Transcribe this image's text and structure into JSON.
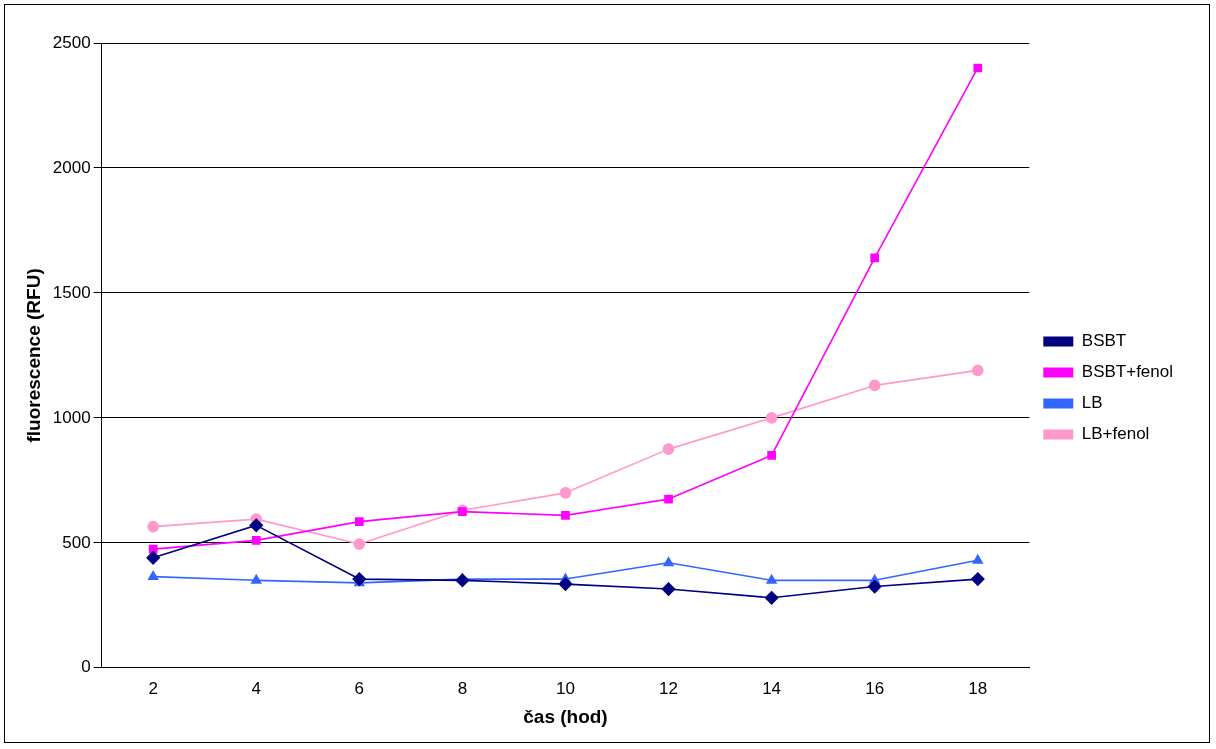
{
  "chart_data": {
    "type": "line",
    "xlabel": "čas (hod)",
    "ylabel": "fluorescence (RFU)",
    "categories": [
      "2",
      "4",
      "6",
      "8",
      "10",
      "12",
      "14",
      "16",
      "18"
    ],
    "ylim": [
      0,
      2500
    ],
    "yticks": [
      0,
      500,
      1000,
      1500,
      2000,
      2500
    ],
    "grid": "y",
    "legend": "right",
    "line_style": "solid",
    "series": [
      {
        "name": "BSBT",
        "color": "#000080",
        "marker": "diamond",
        "values": [
          440,
          570,
          355,
          350,
          335,
          315,
          280,
          325,
          355
        ]
      },
      {
        "name": "BSBT+fenol",
        "color": "#ff00ff",
        "marker": "square",
        "values": [
          475,
          510,
          585,
          625,
          610,
          675,
          850,
          1640,
          2400
        ]
      },
      {
        "name": "LB",
        "color": "#3366ff",
        "marker": "triangle",
        "values": [
          365,
          350,
          340,
          355,
          355,
          420,
          350,
          350,
          430
        ]
      },
      {
        "name": "LB+fenol",
        "color": "#ff99cc",
        "marker": "circle",
        "values": [
          565,
          595,
          495,
          630,
          700,
          875,
          1000,
          1130,
          1190
        ]
      }
    ]
  }
}
